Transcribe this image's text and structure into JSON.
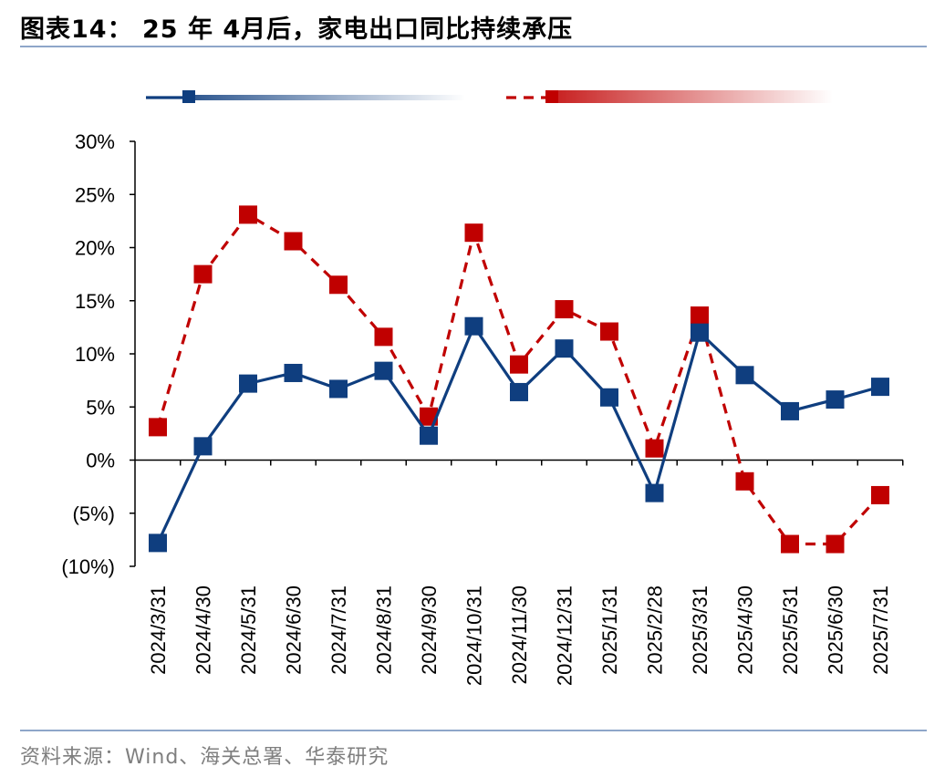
{
  "title": "图表14：  25 年 4月后，家电出口同比持续承压",
  "source": "资料来源：Wind、海关总署、华泰研究",
  "chart_data": {
    "type": "line",
    "title": "图表14：  25 年 4月后，家电出口同比持续承压",
    "xlabel": "",
    "ylabel": "",
    "ylim": [
      -10,
      30
    ],
    "y_ticks": [
      30,
      25,
      20,
      15,
      10,
      5,
      0,
      -5,
      -10
    ],
    "y_tick_labels": [
      "30%",
      "25%",
      "20%",
      "15%",
      "10%",
      "5%",
      "0%",
      "(5%)",
      "(10%)"
    ],
    "categories": [
      "2024/3/31",
      "2024/4/30",
      "2024/5/31",
      "2024/6/30",
      "2024/7/31",
      "2024/8/31",
      "2024/9/30",
      "2024/10/31",
      "2024/11/30",
      "2024/12/31",
      "2025/1/31",
      "2025/2/28",
      "2025/3/31",
      "2025/4/30",
      "2025/5/31",
      "2025/6/30",
      "2025/7/31"
    ],
    "legend_position": "top",
    "grid": false,
    "series": [
      {
        "color": "#0f3e7f",
        "style": "solid",
        "marker": "square",
        "values": [
          -7.8,
          1.3,
          7.2,
          8.2,
          6.7,
          8.4,
          2.3,
          12.6,
          6.4,
          10.5,
          5.9,
          -3.1,
          12.0,
          8.0,
          4.6,
          5.7,
          6.9
        ]
      },
      {
        "color": "#c00000",
        "style": "dashed",
        "marker": "square",
        "values": [
          3.1,
          17.5,
          23.1,
          20.6,
          16.5,
          11.6,
          4.1,
          21.4,
          9.0,
          14.2,
          12.1,
          1.1,
          13.6,
          -2.0,
          -7.9,
          -7.9,
          -3.3
        ]
      }
    ]
  }
}
